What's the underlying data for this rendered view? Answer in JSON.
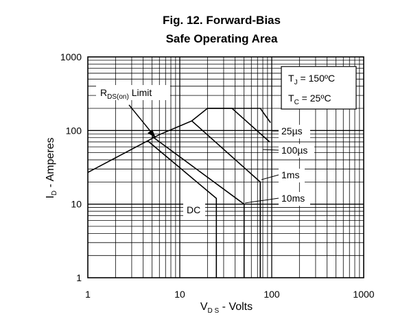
{
  "chart_data": {
    "type": "line",
    "title_line1": "Fig. 12. Forward-Bias",
    "title_line2": "Safe Operating Area",
    "xlabel": {
      "main": "V",
      "sub": "D S",
      "rest": " - Volts"
    },
    "ylabel": {
      "main": "I",
      "sub": "D",
      "rest": " - Amperes"
    },
    "x_scale": "log",
    "y_scale": "log",
    "xlim": [
      1,
      1000
    ],
    "ylim": [
      1,
      1000
    ],
    "x_ticks": [
      1,
      10,
      100,
      1000
    ],
    "y_ticks": [
      1,
      10,
      100,
      1000
    ],
    "x_tick_labels": [
      "1",
      "10",
      "100",
      "1000"
    ],
    "y_tick_labels": [
      "1",
      "10",
      "100",
      "1000"
    ],
    "grid": true,
    "conditions": [
      {
        "main": "T",
        "sub": "J",
        "rest": " = 150ºC"
      },
      {
        "main": "T",
        "sub": "C",
        "rest": " = 25ºC"
      }
    ],
    "rds_label": {
      "main": "R",
      "sub": "DS(on)",
      "rest": " Limit"
    },
    "series": [
      {
        "name": "RDS(on) Limit",
        "x": [
          1,
          6
        ],
        "y": [
          27,
          88
        ]
      },
      {
        "name": "DC",
        "x": [
          4.5,
          25,
          25
        ],
        "y": [
          72,
          12,
          1
        ]
      },
      {
        "name": "10ms",
        "x": [
          5,
          50,
          50
        ],
        "y": [
          83,
          10,
          1
        ]
      },
      {
        "name": "1ms",
        "x": [
          6,
          13.5,
          75,
          75
        ],
        "y": [
          88,
          135,
          20,
          1
        ]
      },
      {
        "name": "100µs",
        "x": [
          13.5,
          20,
          37,
          95
        ],
        "y": [
          135,
          200,
          200,
          70
        ]
      },
      {
        "name": "25µs",
        "x": [
          20,
          75,
          97
        ],
        "y": [
          200,
          200,
          128
        ]
      }
    ],
    "curve_labels": [
      "DC",
      "10ms",
      "1ms",
      "100µs",
      "25µs"
    ]
  }
}
